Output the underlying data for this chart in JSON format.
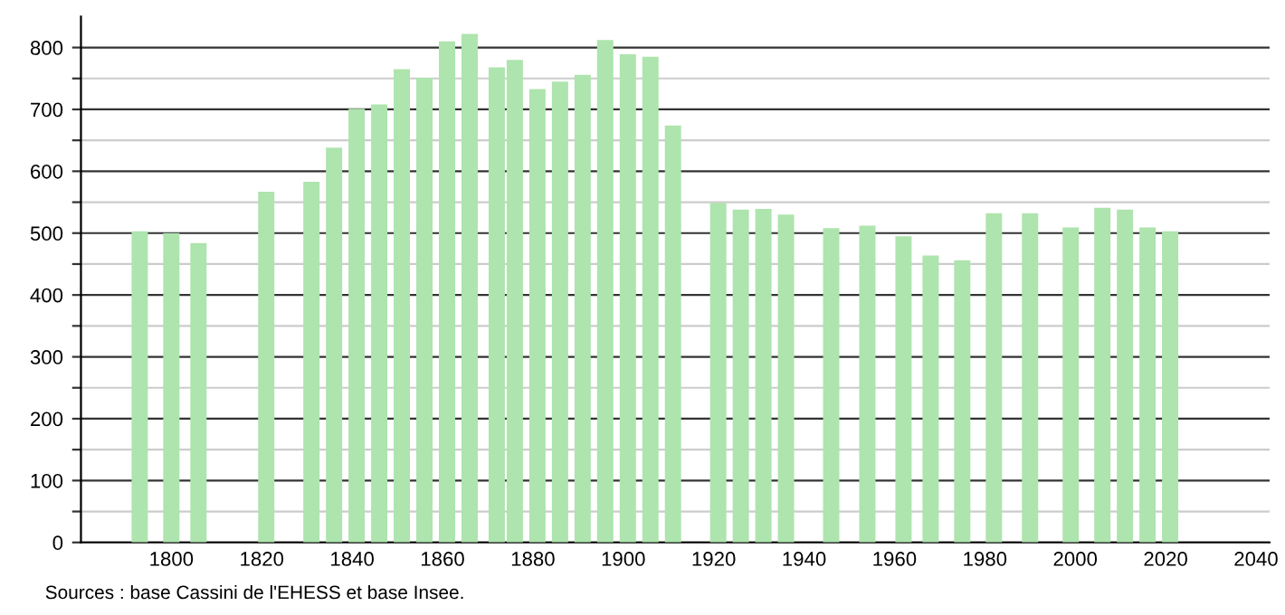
{
  "chart_data": {
    "type": "bar",
    "color": "#aee4ae",
    "x": [
      1793,
      1800,
      1806,
      1821,
      1831,
      1836,
      1841,
      1846,
      1851,
      1856,
      1861,
      1866,
      1872,
      1876,
      1881,
      1886,
      1891,
      1896,
      1901,
      1906,
      1911,
      1921,
      1926,
      1931,
      1936,
      1946,
      1954,
      1962,
      1968,
      1975,
      1982,
      1990,
      1999,
      2006,
      2011,
      2016,
      2021
    ],
    "values": [
      503,
      500,
      484,
      567,
      583,
      638,
      701,
      708,
      765,
      751,
      810,
      822,
      768,
      780,
      733,
      745,
      756,
      812,
      789,
      785,
      674,
      549,
      538,
      539,
      530,
      508,
      512,
      495,
      464,
      456,
      532,
      532,
      509,
      541,
      538,
      509,
      503
    ],
    "xlim": [
      1780,
      2043
    ],
    "xticks": [
      1800,
      1820,
      1840,
      1860,
      1880,
      1900,
      1920,
      1940,
      1960,
      1980,
      2000,
      2020,
      2040
    ],
    "ylim": [
      0,
      850
    ],
    "yticks": [
      0,
      {
        "value": 50,
        "label": null
      },
      100,
      {
        "value": 150,
        "label": null
      },
      200,
      {
        "value": 250,
        "label": null
      },
      300,
      {
        "value": 350,
        "label": null
      },
      400,
      {
        "value": 450,
        "label": null
      },
      500,
      {
        "value": 550,
        "label": null
      },
      600,
      {
        "value": 650,
        "label": null
      },
      700,
      {
        "value": 750,
        "label": null
      },
      800
    ],
    "grid": "y",
    "annotations": [
      "Sources : base Cassini de l'EHESS et base Insee."
    ]
  }
}
